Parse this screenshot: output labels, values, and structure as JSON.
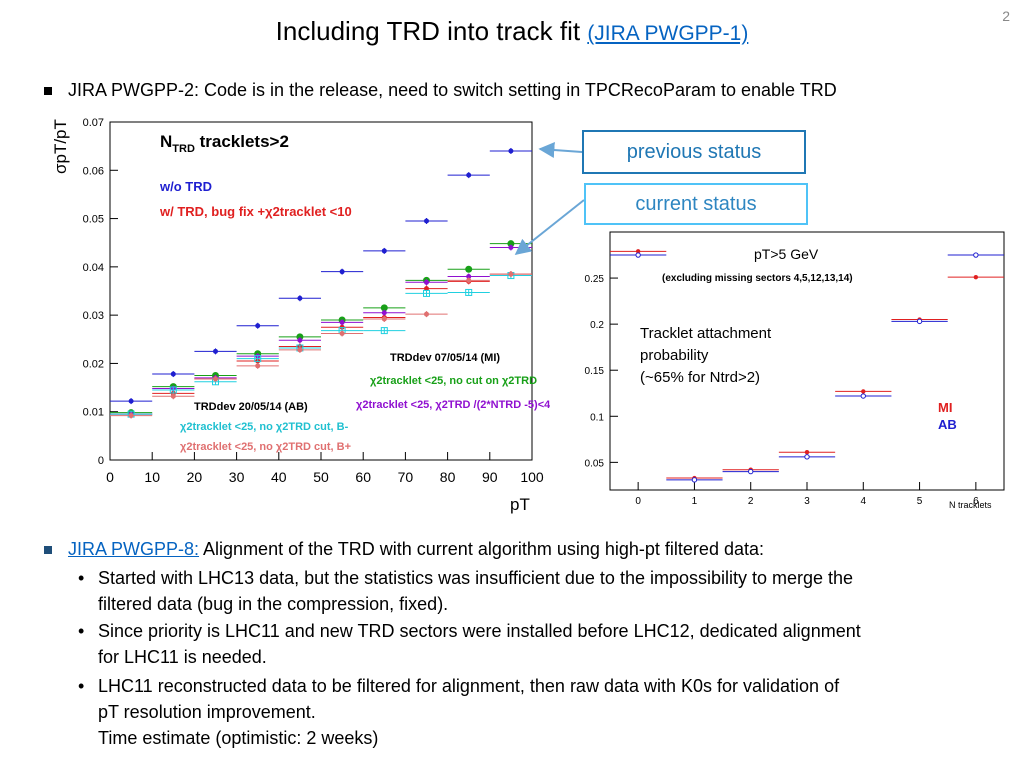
{
  "slide": {
    "page_number": "2",
    "title_main": "Including TRD into track fit",
    "title_link": "(JIRA PWGPP-1)",
    "bullet1": "JIRA PWGPP-2: Code is in the release, need to switch setting in TPCRecoParam to enable TRD",
    "callout_previous": "previous status",
    "callout_current": "current status",
    "bullet2_link": "JIRA PWGPP-8:",
    "bullet2_text": " Alignment of the TRD with current algorithm using high-pt filtered data:",
    "sub1_l1": "Started with LHC13 data, but the statistics was insufficient due to the impossibility to merge the",
    "sub1_l2": "filtered data (bug in the compression, fixed).",
    "sub2_l1": "Since priority is LHC11 and new TRD sectors were installed before LHC12, dedicated alignment",
    "sub2_l2": "for LHC11 is needed.",
    "sub3_l1": "LHC11 reconstructed data to be filtered for alignment, then raw data with K0s for validation of",
    "sub3_l2": "pT resolution improvement.",
    "sub3_l3": "Time estimate (optimistic: 2 weeks)"
  },
  "chart_data": [
    {
      "type": "scatter",
      "title": "NTRD tracklets>2",
      "xlabel": "pT",
      "ylabel": "σpT/pT",
      "xlim": [
        0,
        100
      ],
      "ylim": [
        0,
        0.07
      ],
      "x_ticks": [
        "0",
        "10",
        "20",
        "30",
        "40",
        "50",
        "60",
        "70",
        "80",
        "90",
        "100"
      ],
      "y_ticks": [
        "0",
        "0.01",
        "0.02",
        "0.03",
        "0.04",
        "0.05",
        "0.06",
        "0.07"
      ],
      "x": [
        5,
        15,
        25,
        35,
        45,
        55,
        65,
        75,
        85,
        95
      ],
      "labels": {
        "wo": "w/o TRD",
        "w": "w/ TRD, bug fix +χ2tracklet <10",
        "mi_head": "TRDdev 07/05/14 (MI)",
        "mi1": "χ2tracklet <25, no cut on χ2TRD",
        "mi2": "χ2tracklet <25, χ2TRD /(2*NTRD -5)<4",
        "ab_head": "TRDdev 20/05/14 (AB)",
        "ab1": "χ2tracklet <25, no χ2TRD cut, B-",
        "ab2": "χ2tracklet <25, no χ2TRD cut, B+"
      },
      "series": [
        {
          "name": "w/o TRD",
          "color": "#1f1fd0",
          "values": [
            0.0122,
            0.0178,
            0.0225,
            0.0278,
            0.0335,
            0.039,
            0.0433,
            0.0495,
            0.059,
            0.064
          ]
        },
        {
          "name": "w/ TRD, bug fix",
          "color": "#e02020",
          "values": [
            0.0095,
            0.0138,
            0.0168,
            0.0205,
            0.0235,
            0.0275,
            0.0295,
            0.0355,
            0.037,
            0.0385
          ]
        },
        {
          "name": "MI no cut",
          "color": "#18a018",
          "values": [
            0.0098,
            0.0152,
            0.0175,
            0.022,
            0.0255,
            0.029,
            0.0315,
            0.0372,
            0.0395,
            0.0448
          ]
        },
        {
          "name": "MI chi2 cut",
          "color": "#9010d0",
          "values": [
            0.0095,
            0.0148,
            0.017,
            0.0215,
            0.0248,
            0.0285,
            0.0305,
            0.0368,
            0.038,
            0.044
          ]
        },
        {
          "name": "AB B-",
          "color": "#20d0e0",
          "values": [
            0.0095,
            0.0145,
            0.0162,
            0.021,
            0.0232,
            0.0268,
            0.0268,
            0.0345,
            0.0347,
            0.0382
          ]
        },
        {
          "name": "AB B+",
          "color": "#e07070",
          "values": [
            0.0092,
            0.0132,
            0.0168,
            0.0195,
            0.0228,
            0.0262,
            0.0292,
            0.0302,
            0.0372,
            0.0385
          ]
        }
      ]
    },
    {
      "type": "scatter",
      "title": "pT>5 GeV",
      "subtitle": "(excluding missing sectors 4,5,12,13,14)",
      "xlabel": "N tracklets",
      "annotation": [
        "Tracklet attachment",
        "probability",
        "(~65% for Ntrd>2)"
      ],
      "xlim": [
        -0.5,
        6.5
      ],
      "ylim": [
        0.02,
        0.3
      ],
      "x_ticks": [
        "0",
        "1",
        "2",
        "3",
        "4",
        "5",
        "6"
      ],
      "y_ticks": [
        "0.05",
        "0.1",
        "0.15",
        "0.2",
        "0.25"
      ],
      "x": [
        0,
        1,
        2,
        3,
        4,
        5,
        6
      ],
      "series": [
        {
          "name": "MI",
          "color": "#e02020",
          "values": [
            0.279,
            0.033,
            0.042,
            0.061,
            0.127,
            0.205,
            0.251
          ]
        },
        {
          "name": "AB",
          "color": "#1f1fd0",
          "values": [
            0.275,
            0.031,
            0.04,
            0.056,
            0.122,
            0.203,
            0.275
          ]
        }
      ]
    }
  ]
}
